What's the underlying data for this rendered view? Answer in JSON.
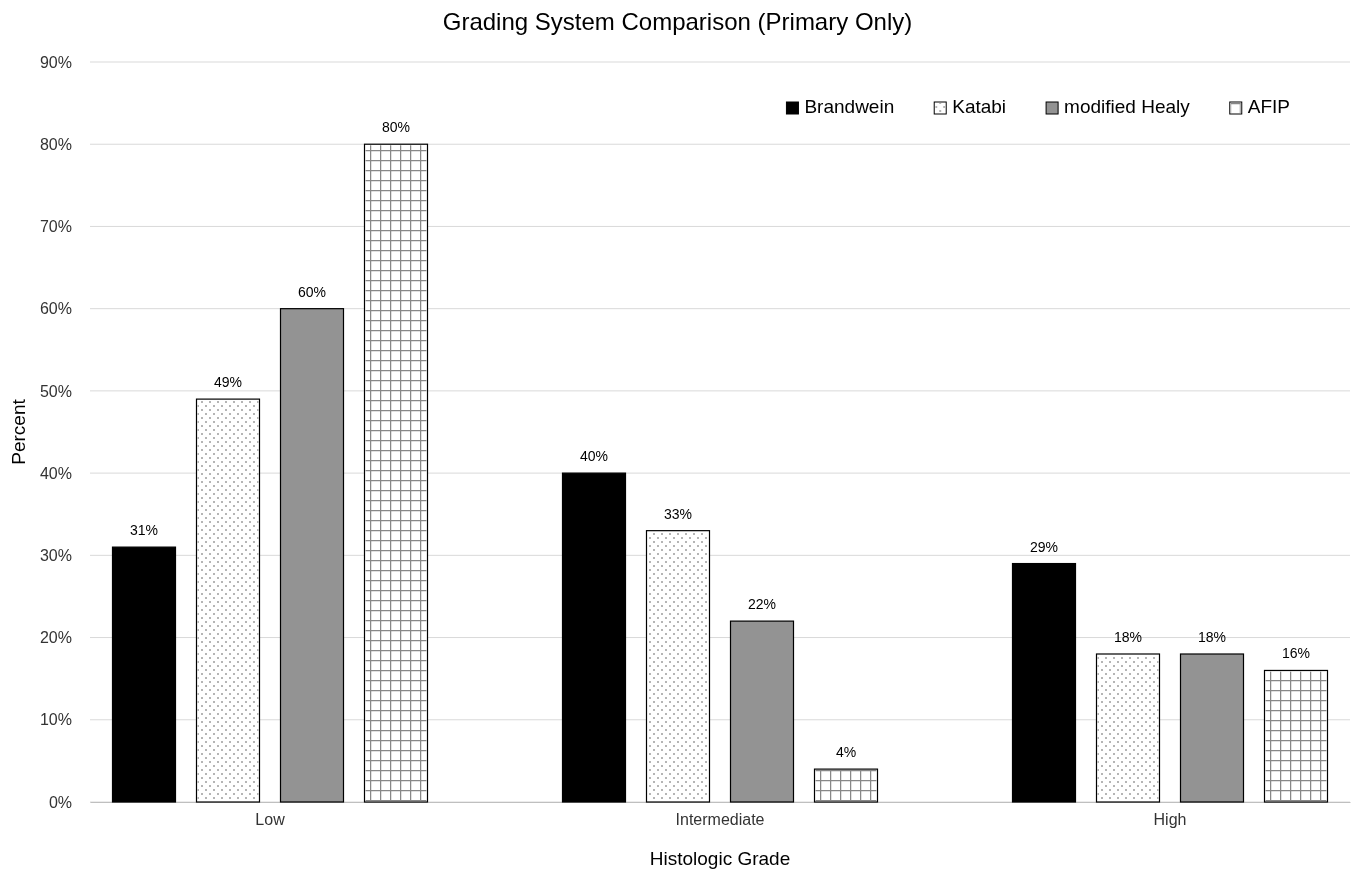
{
  "chart_data": {
    "type": "bar",
    "title": "Grading System Comparison (Primary Only)",
    "xlabel": "Histologic Grade",
    "ylabel": "Percent",
    "categories": [
      "Low",
      "Intermediate",
      "High"
    ],
    "series": [
      {
        "name": "Brandwein",
        "color": "#000000",
        "values": [
          31,
          40,
          29
        ],
        "value_labels": [
          "31%",
          "40%",
          "29%"
        ]
      },
      {
        "name": "Katabi",
        "color": "#ffffff",
        "values": [
          49,
          33,
          18
        ],
        "value_labels": [
          "49%",
          "33%",
          "18%"
        ]
      },
      {
        "name": "modified Healy",
        "color": "#939393",
        "values": [
          60,
          22,
          18
        ],
        "value_labels": [
          "60%",
          "22%",
          "18%"
        ]
      },
      {
        "name": "AFIP",
        "color": "#ffffff",
        "values": [
          80,
          4,
          16
        ],
        "value_labels": [
          "80%",
          "4%",
          "16%"
        ]
      }
    ],
    "ylim": [
      0,
      90
    ],
    "yticks": [
      {
        "value": 0,
        "label": "0%"
      },
      {
        "value": 10,
        "label": "10%"
      },
      {
        "value": 20,
        "label": "20%"
      },
      {
        "value": 30,
        "label": "30%"
      },
      {
        "value": 40,
        "label": "40%"
      },
      {
        "value": 50,
        "label": "50%"
      },
      {
        "value": 60,
        "label": "60%"
      },
      {
        "value": 70,
        "label": "70%"
      },
      {
        "value": 80,
        "label": "80%"
      },
      {
        "value": 90,
        "label": "90%"
      }
    ],
    "grid": "y",
    "legend": "top right"
  }
}
